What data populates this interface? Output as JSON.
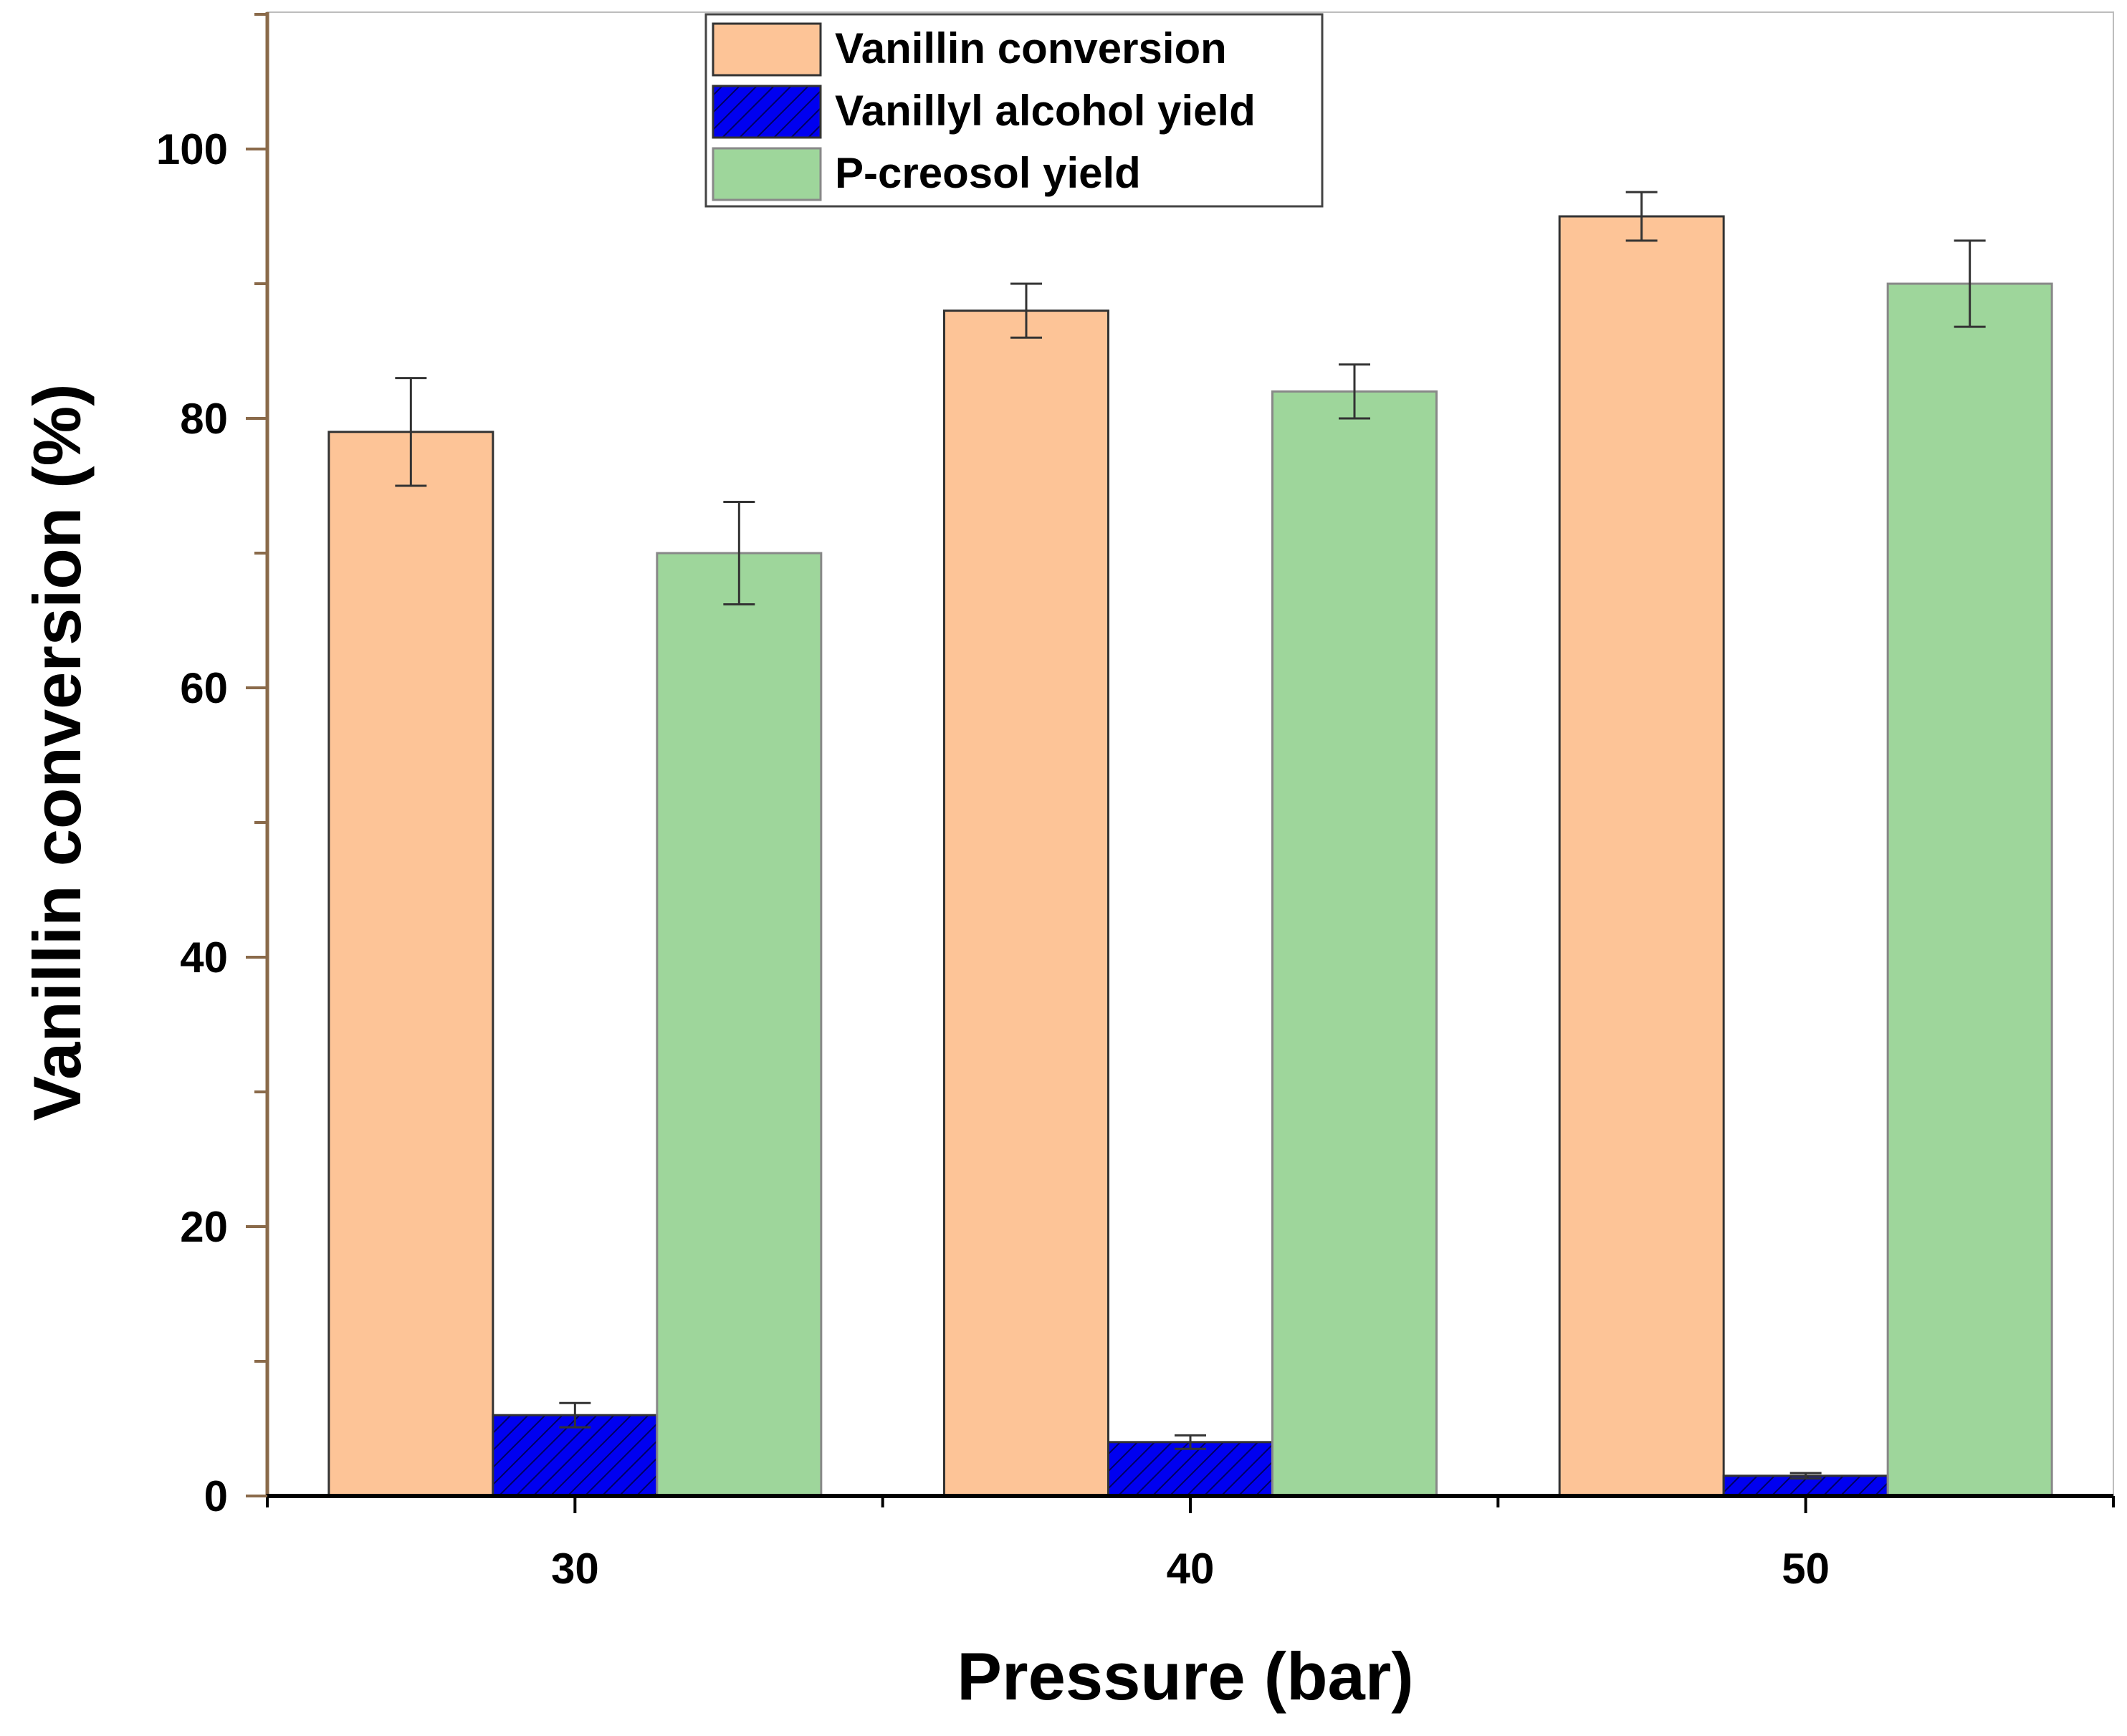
{
  "chart_data": {
    "type": "bar",
    "xlabel": "Pressure (bar)",
    "ylabel": "Vanillin conversion (%)",
    "categories": [
      "30",
      "40",
      "50"
    ],
    "ylim": [
      0,
      110
    ],
    "yticks": [
      0,
      20,
      40,
      60,
      80,
      100
    ],
    "series": [
      {
        "name": "Vanillin conversion",
        "values": [
          79,
          88,
          95
        ],
        "errors": [
          4,
          2,
          1.8
        ],
        "color": "#fdc497"
      },
      {
        "name": "Vanillyl alcohol yield",
        "values": [
          6,
          4,
          1.5
        ],
        "errors": [
          0.9,
          0.5,
          0.2
        ],
        "color": "#0000f0",
        "hatch": true
      },
      {
        "name": "P-creosol yield",
        "values": [
          70,
          82,
          90
        ],
        "errors": [
          3.8,
          2,
          3.2
        ],
        "color": "#9ed69b"
      }
    ],
    "legend_position": "top-center",
    "grid": false,
    "axis_color": "#8a6a4a"
  }
}
